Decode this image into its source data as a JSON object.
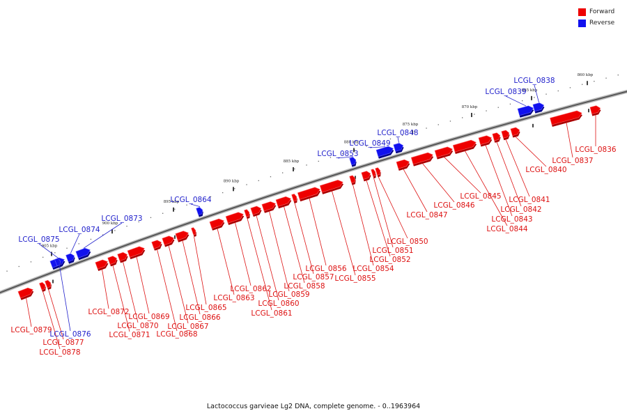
{
  "legend": {
    "forward_label": "Forward",
    "reverse_label": "Reverse",
    "forward_color": "#ee0000",
    "reverse_color": "#1111ee"
  },
  "caption": "Lactococcus garvieae Lg2 DNA, complete genome. - 0..1963964",
  "ticks": [
    "860 kbp",
    "865 kbp",
    "870 kbp",
    "875 kbp",
    "880 kbp",
    "885 kbp",
    "890 kbp",
    "895 kbp",
    "900 kbp",
    "905 kbp"
  ],
  "forward_genes": [
    "LCGL_0836",
    "LCGL_0837",
    "LCGL_0840",
    "LCGL_0841",
    "LCGL_0842",
    "LCGL_0843",
    "LCGL_0844",
    "LCGL_0845",
    "LCGL_0846",
    "LCGL_0847",
    "LCGL_0850",
    "LCGL_0851",
    "LCGL_0852",
    "LCGL_0854",
    "LCGL_0855",
    "LCGL_0856",
    "LCGL_0857",
    "LCGL_0858",
    "LCGL_0859",
    "LCGL_0860",
    "LCGL_0861",
    "LCGL_0862",
    "LCGL_0863",
    "LCGL_0865",
    "LCGL_0866",
    "LCGL_0867",
    "LCGL_0868",
    "LCGL_0869",
    "LCGL_0870",
    "LCGL_0871",
    "LCGL_0872",
    "LCGL_0877",
    "LCGL_0878",
    "LCGL_0879"
  ],
  "reverse_genes": [
    "LCGL_0838",
    "LCGL_0839",
    "LCGL_0848",
    "LCGL_0849",
    "LCGL_0853",
    "LCGL_0864",
    "LCGL_0873",
    "LCGL_0874",
    "LCGL_0875",
    "LCGL_0876"
  ]
}
